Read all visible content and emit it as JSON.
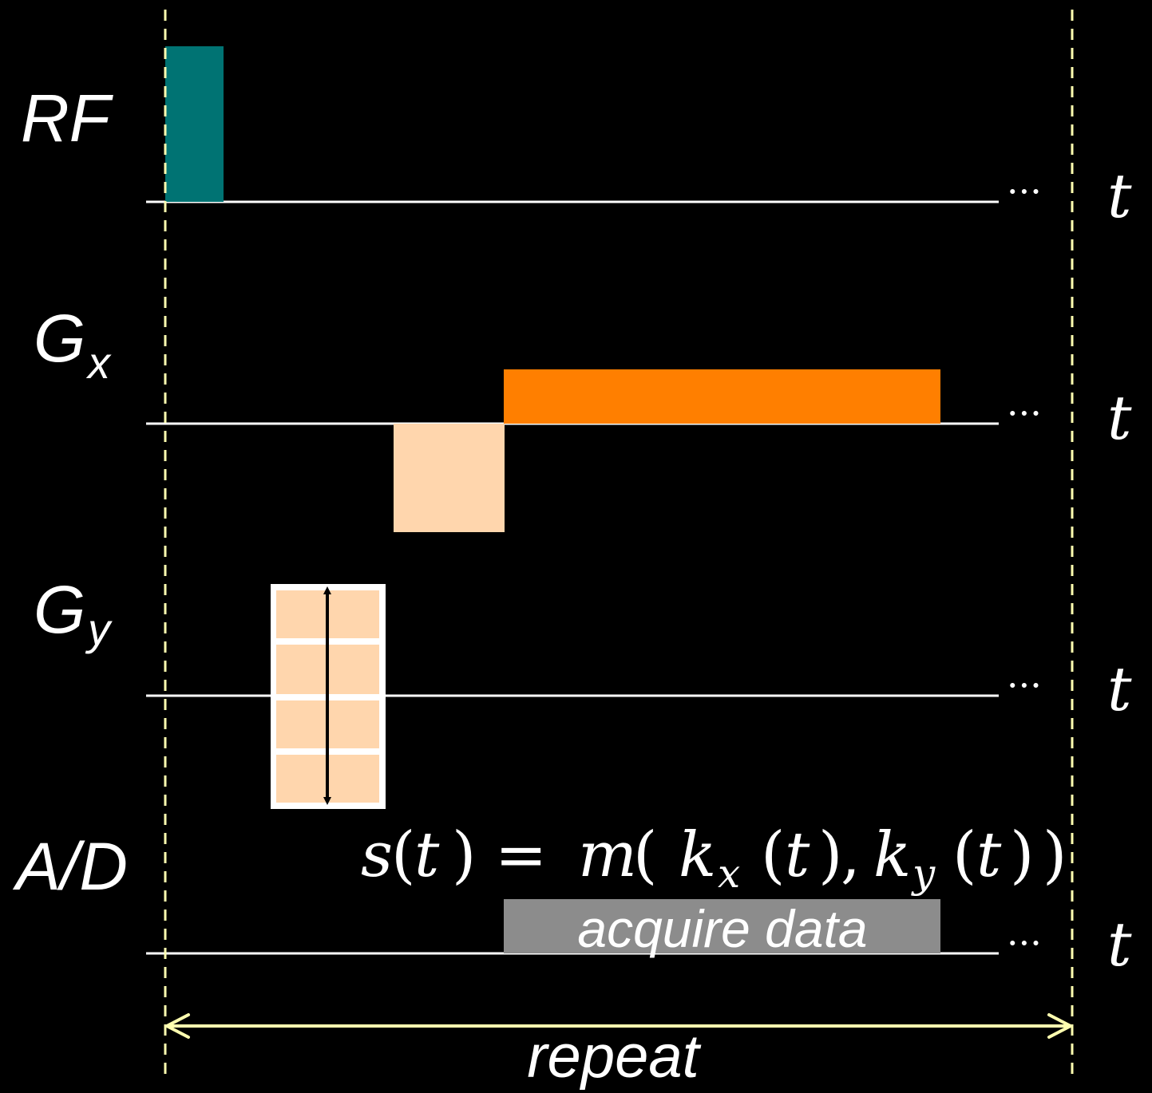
{
  "rows": {
    "rf": {
      "label_main": "RF",
      "label_sub": ""
    },
    "gx": {
      "label_main": "G",
      "label_sub": "x"
    },
    "gy": {
      "label_main": "G",
      "label_sub": "y"
    },
    "ad": {
      "label_main": "A/D",
      "label_sub": ""
    }
  },
  "time_axis": {
    "symbol": "t",
    "continuation": "···"
  },
  "equation": {
    "s": "s",
    "lp1": "(",
    "t1": "t",
    "rp1": ")",
    "eq": "=",
    "m": "m",
    "lp2": "(",
    "k1": "k",
    "sub1": "x",
    "lp3": "(",
    "t2": "t",
    "rp3": ")",
    "comma": ",",
    "k2": "k",
    "sub2": "y",
    "lp4": "(",
    "t3": "t",
    "rp4": ")",
    "rp2": ")"
  },
  "acquire_label": "acquire data",
  "repeat_label": "repeat",
  "colors": {
    "background": "#000000",
    "rf_pulse": "#007373",
    "gx_readout": "#ff7f00",
    "gx_prephaser": "#ffd6ad",
    "gy_phase_encode": "#ffd6ad",
    "adc_window": "#8c8c8c",
    "axis": "#ffffff",
    "boundary": "#ffffb0"
  }
}
